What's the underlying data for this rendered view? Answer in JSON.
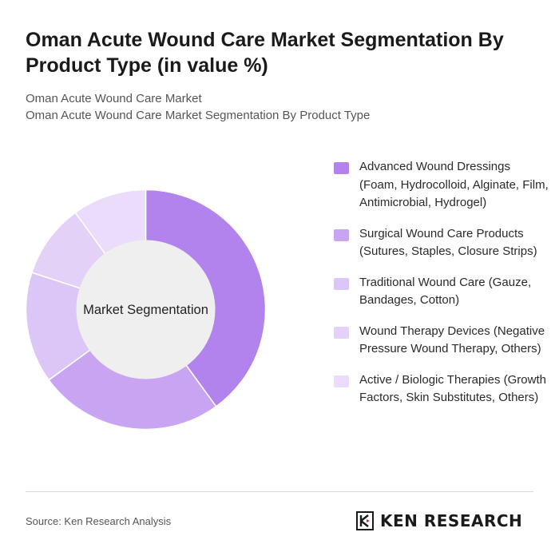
{
  "title": "Oman Acute Wound Care Market Segmentation By Product Type (in value %)",
  "subtitle_lines": [
    "Oman Acute Wound Care Market",
    "Oman Acute Wound Care Market Segmentation By Product Type"
  ],
  "chart_data": {
    "type": "pie",
    "donut": true,
    "center_label": "Market Segmentation",
    "legend_position": "right",
    "categories": [
      "Advanced Wound Dressings (Foam, Hydrocolloid, Alginate, Film, Antimicrobial, Hydrogel)",
      "Surgical Wound Care Products (Sutures, Staples, Closure Strips)",
      "Traditional Wound Care (Gauze, Bandages, Cotton)",
      "Wound Therapy Devices (Negative Pressure Wound Therapy, Others)",
      "Active / Biologic Therapies (Growth Factors, Skin Substitutes, Others)"
    ],
    "values": [
      40,
      25,
      15,
      10,
      10
    ],
    "colors": [
      "#b283ec",
      "#c9a4f2",
      "#dcc5f7",
      "#e3d1f8",
      "#eadcfa"
    ],
    "center_color": "#efefef"
  },
  "footer": {
    "source": "Source: Ken Research Analysis",
    "logo_text": "KEN RESEARCH"
  }
}
